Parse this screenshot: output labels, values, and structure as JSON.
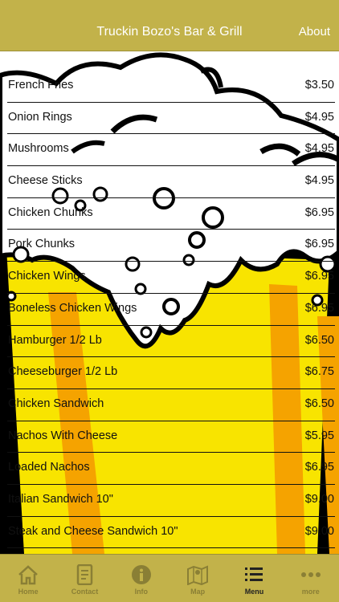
{
  "header": {
    "title": "Truckin Bozo's Bar & Grill",
    "about_label": "About"
  },
  "menu": {
    "items": [
      {
        "name": "French Fries",
        "price": "$3.50"
      },
      {
        "name": "Onion Rings",
        "price": "$4.95"
      },
      {
        "name": "Mushrooms",
        "price": "$4.95"
      },
      {
        "name": "Cheese Sticks",
        "price": "$4.95"
      },
      {
        "name": "Chicken Chunks",
        "price": "$6.95"
      },
      {
        "name": "Pork Chunks",
        "price": "$6.95"
      },
      {
        "name": "Chicken Wings",
        "price": "$6.95"
      },
      {
        "name": "Boneless Chicken Wings",
        "price": "$6.95"
      },
      {
        "name": "Hamburger 1/2 Lb",
        "price": "$6.50"
      },
      {
        "name": "Cheeseburger 1/2 Lb",
        "price": "$6.75"
      },
      {
        "name": "Chicken Sandwich",
        "price": "$6.50"
      },
      {
        "name": "Nachos With Cheese",
        "price": "$5.95"
      },
      {
        "name": "Loaded Nachos",
        "price": "$6.95"
      },
      {
        "name": "Italian Sandwich 10\"",
        "price": "$9.00"
      },
      {
        "name": "Steak and Cheese Sandwich 10\"",
        "price": "$9.00"
      }
    ]
  },
  "tabbar": {
    "tabs": [
      {
        "label": "Home",
        "icon": "home-icon"
      },
      {
        "label": "Contact",
        "icon": "contact-icon"
      },
      {
        "label": "Info",
        "icon": "info-icon"
      },
      {
        "label": "Map",
        "icon": "map-icon"
      },
      {
        "label": "Menu",
        "icon": "menu-list-icon"
      },
      {
        "label": "more",
        "icon": "more-icon"
      }
    ],
    "active": "Menu"
  },
  "colors": {
    "accent": "#c2b24a",
    "beer": "#f7e000",
    "beer_stripe": "#f5a000"
  }
}
